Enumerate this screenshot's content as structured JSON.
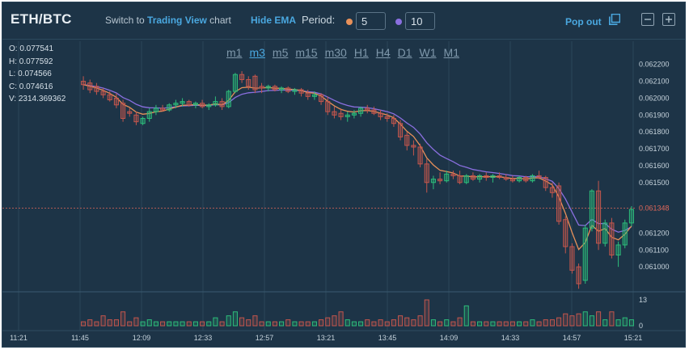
{
  "header": {
    "symbol": "ETH/BTC",
    "switch_prefix": "Switch to ",
    "switch_link": "Trading View",
    "switch_suffix": " chart",
    "hide_ema": "Hide EMA",
    "period_label": "Period:",
    "period_fast": "5",
    "period_slow": "10",
    "period_fast_color": "#e8915a",
    "period_slow_color": "#8a6fe0",
    "pop_out": "Pop out",
    "icons": [
      "pop-out-icon",
      "minus-icon",
      "plus-icon"
    ]
  },
  "ohlc": {
    "open": "O: 0.077541",
    "high": "H: 0.077592",
    "low": "L: 0.074566",
    "close": "C: 0.074616",
    "volume": "V: 2314.369362"
  },
  "timeframes": [
    "m1",
    "m3",
    "m5",
    "m15",
    "m30",
    "H1",
    "H4",
    "D1",
    "W1",
    "M1"
  ],
  "active_timeframe": "m3",
  "chart_data": {
    "type": "candlestick",
    "price_ticks": [
      "0.062200",
      "0.062100",
      "0.062000",
      "0.061900",
      "0.061800",
      "0.061700",
      "0.061600",
      "0.061500",
      "0.061200",
      "0.061100",
      "0.061000"
    ],
    "ylim": [
      0.0609,
      0.06228
    ],
    "current_price": "0.061348",
    "volume_ticks": [
      "13",
      "0"
    ],
    "time_ticks": [
      "11:21",
      "11:45",
      "12:09",
      "12:33",
      "12:57",
      "13:21",
      "13:45",
      "14:09",
      "14:33",
      "14:57",
      "15:21"
    ],
    "colors": {
      "up": "#2dbd7a",
      "down": "#c4564d",
      "ema_fast": "#e8915a",
      "ema_slow": "#8a6fe0",
      "current_line": "#e0675a"
    },
    "candles": [
      [
        0.0621,
        0.06213,
        0.06205,
        0.06208,
        2
      ],
      [
        0.06209,
        0.06211,
        0.06203,
        0.06205,
        3
      ],
      [
        0.06207,
        0.06209,
        0.06202,
        0.06204,
        2
      ],
      [
        0.06204,
        0.06206,
        0.062,
        0.06202,
        5
      ],
      [
        0.06202,
        0.06204,
        0.06198,
        0.06199,
        3
      ],
      [
        0.062,
        0.06203,
        0.06194,
        0.06196,
        3
      ],
      [
        0.06197,
        0.06199,
        0.06186,
        0.06188,
        7
      ],
      [
        0.06192,
        0.06194,
        0.06189,
        0.06191,
        2
      ],
      [
        0.0619,
        0.06192,
        0.06184,
        0.06186,
        4
      ],
      [
        0.06185,
        0.06189,
        0.06184,
        0.06188,
        2
      ],
      [
        0.06188,
        0.06194,
        0.06186,
        0.06192,
        3
      ],
      [
        0.06192,
        0.06196,
        0.0619,
        0.06194,
        2
      ],
      [
        0.06194,
        0.06196,
        0.06192,
        0.06193,
        2
      ],
      [
        0.06193,
        0.06197,
        0.06192,
        0.06196,
        2
      ],
      [
        0.06196,
        0.06199,
        0.06194,
        0.06197,
        2
      ],
      [
        0.06197,
        0.062,
        0.06195,
        0.06198,
        2
      ],
      [
        0.06198,
        0.06199,
        0.06195,
        0.06196,
        2
      ],
      [
        0.06196,
        0.06198,
        0.06194,
        0.06197,
        2
      ],
      [
        0.06197,
        0.06199,
        0.06194,
        0.06195,
        2
      ],
      [
        0.06195,
        0.06197,
        0.06193,
        0.06196,
        2
      ],
      [
        0.06196,
        0.06201,
        0.06195,
        0.06198,
        4
      ],
      [
        0.06198,
        0.062,
        0.06193,
        0.06195,
        2
      ],
      [
        0.06195,
        0.06205,
        0.06194,
        0.06204,
        5
      ],
      [
        0.06204,
        0.06215,
        0.06203,
        0.06214,
        7
      ],
      [
        0.06214,
        0.06216,
        0.06209,
        0.06211,
        4
      ],
      [
        0.06211,
        0.06213,
        0.06205,
        0.06207,
        3
      ],
      [
        0.06213,
        0.06214,
        0.06203,
        0.06205,
        5
      ],
      [
        0.06207,
        0.06209,
        0.06203,
        0.06206,
        2
      ],
      [
        0.06206,
        0.06208,
        0.06204,
        0.06207,
        2
      ],
      [
        0.06207,
        0.06208,
        0.06204,
        0.06205,
        2
      ],
      [
        0.06205,
        0.06207,
        0.06203,
        0.06206,
        2
      ],
      [
        0.06206,
        0.06207,
        0.06203,
        0.06204,
        3
      ],
      [
        0.06204,
        0.06206,
        0.06202,
        0.06205,
        2
      ],
      [
        0.06205,
        0.06206,
        0.06201,
        0.06203,
        2
      ],
      [
        0.06203,
        0.06205,
        0.06199,
        0.06201,
        2
      ],
      [
        0.06201,
        0.06204,
        0.06199,
        0.06202,
        2
      ],
      [
        0.06202,
        0.06203,
        0.06196,
        0.06198,
        3
      ],
      [
        0.06198,
        0.06201,
        0.0619,
        0.06192,
        4
      ],
      [
        0.06192,
        0.06195,
        0.06188,
        0.0619,
        5
      ],
      [
        0.06191,
        0.06194,
        0.06187,
        0.06189,
        7
      ],
      [
        0.06189,
        0.06192,
        0.06186,
        0.0619,
        3
      ],
      [
        0.0619,
        0.06193,
        0.06188,
        0.06191,
        2
      ],
      [
        0.06191,
        0.06195,
        0.06189,
        0.06194,
        2
      ],
      [
        0.06194,
        0.06196,
        0.06191,
        0.06193,
        3
      ],
      [
        0.06193,
        0.06195,
        0.0619,
        0.06191,
        2
      ],
      [
        0.06191,
        0.06193,
        0.06187,
        0.06189,
        3
      ],
      [
        0.06189,
        0.06191,
        0.06186,
        0.06188,
        2
      ],
      [
        0.06188,
        0.0619,
        0.06183,
        0.06185,
        3
      ],
      [
        0.06185,
        0.06187,
        0.06175,
        0.06177,
        5
      ],
      [
        0.06178,
        0.0618,
        0.06169,
        0.06172,
        4
      ],
      [
        0.06172,
        0.06175,
        0.06166,
        0.06171,
        3
      ],
      [
        0.06171,
        0.06173,
        0.06159,
        0.06161,
        5
      ],
      [
        0.06161,
        0.06164,
        0.06144,
        0.0615,
        13
      ],
      [
        0.0615,
        0.06154,
        0.06146,
        0.06152,
        3
      ],
      [
        0.06152,
        0.06156,
        0.06149,
        0.06151,
        2
      ],
      [
        0.06151,
        0.06157,
        0.0615,
        0.06155,
        3
      ],
      [
        0.06155,
        0.06157,
        0.06152,
        0.06154,
        2
      ],
      [
        0.06154,
        0.06157,
        0.06149,
        0.0615,
        4
      ],
      [
        0.0615,
        0.06155,
        0.06149,
        0.06154,
        10
      ],
      [
        0.06154,
        0.06156,
        0.06151,
        0.06152,
        2
      ],
      [
        0.06152,
        0.06155,
        0.0615,
        0.06154,
        2
      ],
      [
        0.06154,
        0.06156,
        0.06151,
        0.06153,
        2
      ],
      [
        0.06153,
        0.06155,
        0.0615,
        0.06154,
        2
      ],
      [
        0.06154,
        0.06156,
        0.06152,
        0.06153,
        2
      ],
      [
        0.06153,
        0.06155,
        0.06151,
        0.06152,
        2
      ],
      [
        0.06152,
        0.06154,
        0.0615,
        0.06151,
        2
      ],
      [
        0.06151,
        0.06154,
        0.0615,
        0.06153,
        2
      ],
      [
        0.06153,
        0.06154,
        0.0615,
        0.06151,
        2
      ],
      [
        0.06151,
        0.06155,
        0.0615,
        0.06154,
        3
      ],
      [
        0.06154,
        0.06157,
        0.06152,
        0.06153,
        2
      ],
      [
        0.06153,
        0.06154,
        0.06145,
        0.06147,
        3
      ],
      [
        0.06147,
        0.0615,
        0.06141,
        0.06144,
        3
      ],
      [
        0.06148,
        0.0615,
        0.06125,
        0.06127,
        4
      ],
      [
        0.06128,
        0.0613,
        0.06108,
        0.06112,
        6
      ],
      [
        0.06112,
        0.06114,
        0.06096,
        0.06098,
        5
      ],
      [
        0.061,
        0.06102,
        0.06087,
        0.0609,
        6
      ],
      [
        0.06092,
        0.06125,
        0.0609,
        0.06123,
        7
      ],
      [
        0.06123,
        0.06146,
        0.06121,
        0.06145,
        5
      ],
      [
        0.06145,
        0.06151,
        0.0611,
        0.06114,
        7
      ],
      [
        0.06114,
        0.06128,
        0.06112,
        0.06126,
        3
      ],
      [
        0.06126,
        0.06129,
        0.06105,
        0.06107,
        7
      ],
      [
        0.06107,
        0.06115,
        0.061,
        0.06113,
        3
      ],
      [
        0.06113,
        0.06128,
        0.06111,
        0.06126,
        4
      ],
      [
        0.06126,
        0.06136,
        0.06124,
        0.06134,
        3
      ]
    ]
  }
}
